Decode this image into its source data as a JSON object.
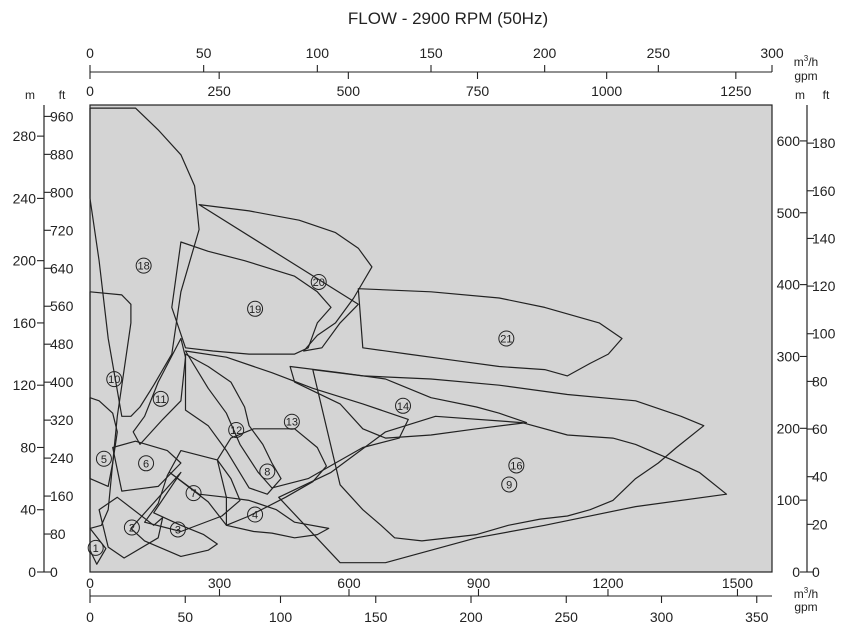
{
  "chart_data": {
    "type": "diagram",
    "title": "FLOW - 2900 RPM (50Hz)",
    "background_color": "#d4d4d4",
    "line_color": "#222222",
    "axes": {
      "top_flow_m3h": {
        "unit_line1": "m",
        "unit_sup": "3",
        "unit_line2": "/h",
        "range": [
          0,
          300
        ],
        "ticks": [
          "0",
          "50",
          "100",
          "150",
          "200",
          "250",
          "300"
        ]
      },
      "top_flow_gpm": {
        "unit": "gpm",
        "range": [
          0,
          1320
        ],
        "ticks": [
          "0",
          "250",
          "500",
          "750",
          "1000",
          "1250"
        ]
      },
      "bottom_flow_gpm": {
        "range": [
          0,
          1580
        ],
        "ticks": [
          "0",
          "300",
          "600",
          "900",
          "1200",
          "1500"
        ]
      },
      "bottom_flow_m3h": {
        "unit_line1": "m",
        "unit_sup": "3",
        "unit_line2": "/h",
        "unit_line3": "gpm",
        "range": [
          0,
          358
        ],
        "ticks": [
          "0",
          "50",
          "100",
          "150",
          "200",
          "250",
          "300",
          "350"
        ]
      },
      "left_head_m": {
        "unit": "m",
        "range": [
          0,
          300
        ],
        "ticks": [
          "0",
          "40",
          "80",
          "120",
          "160",
          "200",
          "240",
          "280"
        ]
      },
      "left_head_ft": {
        "unit": "ft",
        "range": [
          0,
          984
        ],
        "ticks": [
          "0",
          "80",
          "160",
          "240",
          "320",
          "400",
          "480",
          "560",
          "640",
          "720",
          "800",
          "880",
          "960"
        ]
      },
      "right_head_m": {
        "unit": "m",
        "range": [
          0,
          650
        ],
        "ticks": [
          "0",
          "100",
          "200",
          "300",
          "400",
          "500",
          "600"
        ]
      },
      "right_head_ft": {
        "unit": "ft",
        "range": [
          0,
          196
        ],
        "ticks": [
          "0",
          "20",
          "40",
          "60",
          "80",
          "100",
          "120",
          "140",
          "160",
          "180"
        ]
      }
    },
    "regions": [
      {
        "label": "1",
        "points": [
          [
            0,
            28
          ],
          [
            7,
            15
          ],
          [
            3,
            5
          ],
          [
            0,
            14
          ]
        ]
      },
      {
        "label": "2",
        "points": [
          [
            4,
            40
          ],
          [
            12,
            48
          ],
          [
            28,
            30
          ],
          [
            32,
            35
          ],
          [
            30,
            22
          ],
          [
            15,
            9
          ],
          [
            8,
            16
          ]
        ]
      },
      {
        "label": "3",
        "points": [
          [
            40,
            64
          ],
          [
            28,
            38
          ],
          [
            40,
            30
          ],
          [
            50,
            24
          ],
          [
            56,
            18
          ],
          [
            52,
            14
          ],
          [
            40,
            10
          ],
          [
            24,
            20
          ],
          [
            18,
            28
          ]
        ]
      },
      {
        "label": "4",
        "points": [
          [
            35,
            64
          ],
          [
            52,
            45
          ],
          [
            60,
            30
          ],
          [
            72,
            26
          ],
          [
            80,
            25
          ],
          [
            90,
            22
          ],
          [
            100,
            24
          ],
          [
            105,
            28
          ],
          [
            90,
            32
          ],
          [
            82,
            40
          ],
          [
            70,
            46
          ],
          [
            60,
            48
          ],
          [
            48,
            50
          ]
        ]
      },
      {
        "label": "5",
        "points": [
          [
            0,
            112
          ],
          [
            4,
            110
          ],
          [
            10,
            102
          ],
          [
            12,
            90
          ],
          [
            10,
            70
          ],
          [
            8,
            40
          ],
          [
            5,
            30
          ],
          [
            0,
            28
          ]
        ]
      },
      {
        "label": "6",
        "points": [
          [
            14,
            52
          ],
          [
            10,
            80
          ],
          [
            20,
            84
          ],
          [
            34,
            78
          ],
          [
            40,
            70
          ],
          [
            30,
            55
          ]
        ]
      },
      {
        "label": "7",
        "points": [
          [
            24,
            32
          ],
          [
            30,
            44
          ],
          [
            34,
            62
          ],
          [
            40,
            78
          ],
          [
            56,
            72
          ],
          [
            62,
            60
          ],
          [
            66,
            46
          ],
          [
            58,
            36
          ],
          [
            40,
            26
          ]
        ]
      },
      {
        "label": "8",
        "points": [
          [
            56,
            72
          ],
          [
            60,
            48
          ],
          [
            60,
            30
          ],
          [
            70,
            36
          ],
          [
            86,
            48
          ],
          [
            98,
            58
          ],
          [
            104,
            68
          ],
          [
            100,
            80
          ],
          [
            90,
            92
          ],
          [
            72,
            92
          ],
          [
            62,
            86
          ]
        ]
      },
      {
        "label": "9",
        "points": [
          [
            83,
            48
          ],
          [
            106,
            64
          ],
          [
            130,
            90
          ],
          [
            152,
            100
          ],
          [
            190,
            96
          ],
          [
            210,
            88
          ],
          [
            230,
            86
          ],
          [
            240,
            82
          ],
          [
            256,
            72
          ],
          [
            268,
            64
          ],
          [
            280,
            50
          ],
          [
            240,
            42
          ],
          [
            200,
            30
          ],
          [
            170,
            22
          ],
          [
            140,
            10
          ],
          [
            130,
            6
          ],
          [
            110,
            6
          ]
        ]
      },
      {
        "label": "10",
        "points": [
          [
            0,
            180
          ],
          [
            14,
            178
          ],
          [
            18,
            172
          ],
          [
            18,
            160
          ],
          [
            16,
            140
          ],
          [
            12,
            100
          ],
          [
            10,
            70
          ],
          [
            8,
            55
          ],
          [
            0,
            60
          ]
        ]
      },
      {
        "label": "11",
        "points": [
          [
            19,
            90
          ],
          [
            24,
            100
          ],
          [
            30,
            122
          ],
          [
            40,
            150
          ],
          [
            42,
            138
          ],
          [
            40,
            110
          ],
          [
            32,
            98
          ],
          [
            22,
            82
          ]
        ]
      },
      {
        "label": "12",
        "points": [
          [
            42,
            140
          ],
          [
            52,
            132
          ],
          [
            62,
            122
          ],
          [
            68,
            106
          ],
          [
            70,
            94
          ],
          [
            76,
            82
          ],
          [
            80,
            70
          ],
          [
            84,
            60
          ],
          [
            78,
            50
          ],
          [
            70,
            54
          ],
          [
            60,
            78
          ],
          [
            52,
            94
          ],
          [
            42,
            104
          ]
        ]
      },
      {
        "label": "13",
        "points": [
          [
            42,
            142
          ],
          [
            60,
            138
          ],
          [
            80,
            128
          ],
          [
            98,
            118
          ],
          [
            120,
            108
          ],
          [
            140,
            98
          ],
          [
            136,
            86
          ],
          [
            120,
            80
          ],
          [
            108,
            70
          ],
          [
            96,
            60
          ],
          [
            80,
            54
          ],
          [
            74,
            64
          ],
          [
            66,
            82
          ],
          [
            60,
            102
          ],
          [
            52,
            118
          ]
        ]
      },
      {
        "label": "14",
        "points": [
          [
            88,
            132
          ],
          [
            110,
            128
          ],
          [
            130,
            124
          ],
          [
            150,
            112
          ],
          [
            170,
            106
          ],
          [
            180,
            102
          ],
          [
            192,
            96
          ],
          [
            170,
            92
          ],
          [
            150,
            88
          ],
          [
            130,
            86
          ],
          [
            120,
            92
          ],
          [
            110,
            108
          ],
          [
            90,
            122
          ]
        ]
      },
      {
        "label": "16",
        "points": [
          [
            98,
            130
          ],
          [
            120,
            126
          ],
          [
            150,
            124
          ],
          [
            180,
            120
          ],
          [
            210,
            114
          ],
          [
            240,
            110
          ],
          [
            260,
            100
          ],
          [
            270,
            94
          ],
          [
            258,
            80
          ],
          [
            250,
            70
          ],
          [
            240,
            60
          ],
          [
            230,
            46
          ],
          [
            220,
            40
          ],
          [
            210,
            36
          ],
          [
            198,
            34
          ],
          [
            184,
            30
          ],
          [
            170,
            24
          ],
          [
            146,
            20
          ],
          [
            134,
            22
          ],
          [
            128,
            30
          ],
          [
            120,
            40
          ],
          [
            110,
            56
          ]
        ]
      },
      {
        "label": "18",
        "points": [
          [
            0,
            298
          ],
          [
            20,
            298
          ],
          [
            30,
            284
          ],
          [
            40,
            268
          ],
          [
            46,
            248
          ],
          [
            48,
            220
          ],
          [
            40,
            180
          ],
          [
            36,
            140
          ],
          [
            28,
            120
          ],
          [
            22,
            106
          ],
          [
            18,
            100
          ],
          [
            14,
            100
          ],
          [
            8,
            150
          ],
          [
            4,
            200
          ],
          [
            0,
            240
          ]
        ]
      },
      {
        "label": "19",
        "points": [
          [
            40,
            212
          ],
          [
            52,
            206
          ],
          [
            68,
            200
          ],
          [
            90,
            190
          ],
          [
            100,
            180
          ],
          [
            106,
            170
          ],
          [
            100,
            160
          ],
          [
            96,
            144
          ],
          [
            90,
            140
          ],
          [
            70,
            140
          ],
          [
            54,
            142
          ],
          [
            42,
            144
          ],
          [
            36,
            170
          ]
        ]
      },
      {
        "label": "20",
        "points": [
          [
            48,
            236
          ],
          [
            70,
            232
          ],
          [
            92,
            226
          ],
          [
            108,
            218
          ],
          [
            118,
            208
          ],
          [
            124,
            196
          ],
          [
            116,
            176
          ],
          [
            108,
            160
          ],
          [
            100,
            152
          ],
          [
            94,
            142
          ],
          [
            102,
            144
          ],
          [
            110,
            160
          ],
          [
            118,
            172
          ]
        ]
      },
      {
        "label": "21",
        "points": [
          [
            118,
            182
          ],
          [
            150,
            180
          ],
          [
            180,
            176
          ],
          [
            200,
            170
          ],
          [
            224,
            160
          ],
          [
            234,
            150
          ],
          [
            228,
            140
          ],
          [
            220,
            134
          ],
          [
            210,
            126
          ],
          [
            200,
            130
          ],
          [
            180,
            132
          ],
          [
            160,
            136
          ],
          [
            140,
            140
          ],
          [
            120,
            144
          ]
        ]
      }
    ]
  }
}
